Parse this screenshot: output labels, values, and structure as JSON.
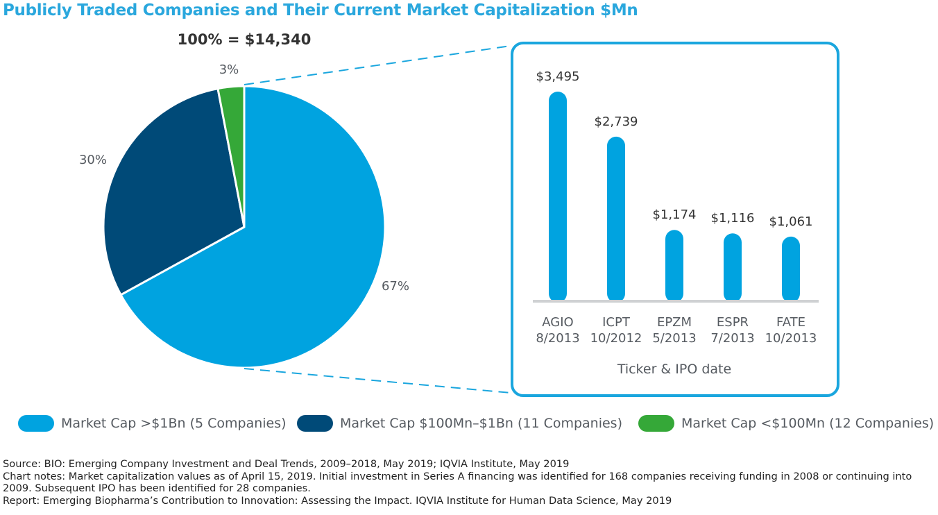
{
  "title": "Publicly Traded Companies and Their Current Market Capitalization $Mn",
  "colors": {
    "title": "#2aa7dd",
    "large": "#00a3e0",
    "mid": "#004a78",
    "small": "#35a838",
    "bar": "#00a3e0",
    "frame": "#1aa6de",
    "axis": "#cfd1d3",
    "text": "#555a60"
  },
  "chart_data": [
    {
      "type": "pie",
      "title": "100% = $14,340",
      "slices": [
        {
          "key": "large",
          "label": "Market Cap >$1Bn (5 Companies)",
          "value": 67,
          "display": "67%"
        },
        {
          "key": "mid",
          "label": "Market Cap $100Mn–$1Bn (11 Companies)",
          "value": 30,
          "display": "30%"
        },
        {
          "key": "small",
          "label": "Market Cap <$100Mn (12 Companies)",
          "value": 3,
          "display": "3%"
        }
      ]
    },
    {
      "type": "bar",
      "xlabel": "Ticker & IPO date",
      "categories": [
        {
          "ticker": "AGIO",
          "date": "8/2013"
        },
        {
          "ticker": "ICPT",
          "date": "10/2012"
        },
        {
          "ticker": "EPZM",
          "date": "5/2013"
        },
        {
          "ticker": "ESPR",
          "date": "7/2013"
        },
        {
          "ticker": "FATE",
          "date": "10/2013"
        }
      ],
      "values": [
        3495,
        2739,
        1174,
        1116,
        1061
      ],
      "value_labels": [
        "$3,495",
        "$2,739",
        "$1,174",
        "$1,116",
        "$1,061"
      ],
      "ylim": [
        0,
        3495
      ]
    }
  ],
  "notes": {
    "source": "Source: BIO: Emerging Company Investment and Deal Trends, 2009–2018, May 2019; IQVIA Institute, May 2019",
    "chart_notes": "Chart notes: Market capitalization values as of April 15, 2019. Initial investment in Series A financing was identified for 168 companies receiving funding in 2008 or continuing into 2009. Subsequent IPO has been identified for 28 companies.",
    "report": "Report: Emerging Biopharma’s Contribution to Innovation: Assessing the Impact. IQVIA Institute for Human Data Science, May 2019"
  }
}
